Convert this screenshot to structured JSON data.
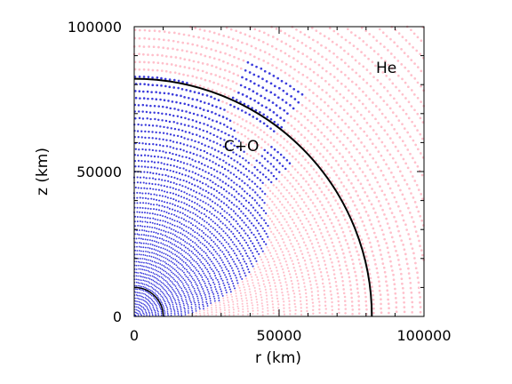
{
  "chart_data": {
    "type": "scatter",
    "title": "",
    "xlabel": "r (km)",
    "ylabel": "z (km)",
    "xlim": [
      0,
      100000
    ],
    "ylim": [
      0,
      100000
    ],
    "xticks": [
      0,
      50000,
      100000
    ],
    "yticks": [
      0,
      50000,
      100000
    ],
    "xtick_labels": [
      "0",
      "50000",
      "100000"
    ],
    "ytick_labels": [
      "0",
      "50000",
      "100000"
    ],
    "grid": false,
    "colors": {
      "he_particles": "#ffc0cb",
      "co_particles": "#1a1ad6",
      "boundary": "#000000"
    },
    "boundary_radius": 82000,
    "inner_boundary_radius": 10000,
    "co_front_profile": [
      {
        "theta_deg": 0,
        "radius": 84000
      },
      {
        "theta_deg": 20,
        "radius": 82000
      },
      {
        "theta_deg": 24,
        "radius": 78000
      },
      {
        "theta_deg": 30,
        "radius": 72000
      },
      {
        "theta_deg": 38,
        "radius": 66000
      },
      {
        "theta_deg": 45,
        "radius": 64000
      },
      {
        "theta_deg": 52,
        "radius": 58000
      },
      {
        "theta_deg": 60,
        "radius": 54000
      },
      {
        "theta_deg": 67,
        "radius": 45000
      },
      {
        "theta_deg": 73,
        "radius": 38000
      },
      {
        "theta_deg": 80,
        "radius": 29000
      },
      {
        "theta_deg": 87,
        "radius": 20000
      },
      {
        "theta_deg": 90,
        "radius": 15000
      }
    ],
    "co_clumps": [
      {
        "theta_range_deg": [
          24,
          38
        ],
        "radius_range": [
          80000,
          96000
        ]
      },
      {
        "theta_range_deg": [
          38,
          46
        ],
        "radius_range": [
          66000,
          76000
        ]
      }
    ],
    "annotations": [
      {
        "text": "He",
        "x": 87000,
        "y": 84000
      },
      {
        "text": "C+O",
        "x": 37000,
        "y": 57000
      }
    ]
  }
}
